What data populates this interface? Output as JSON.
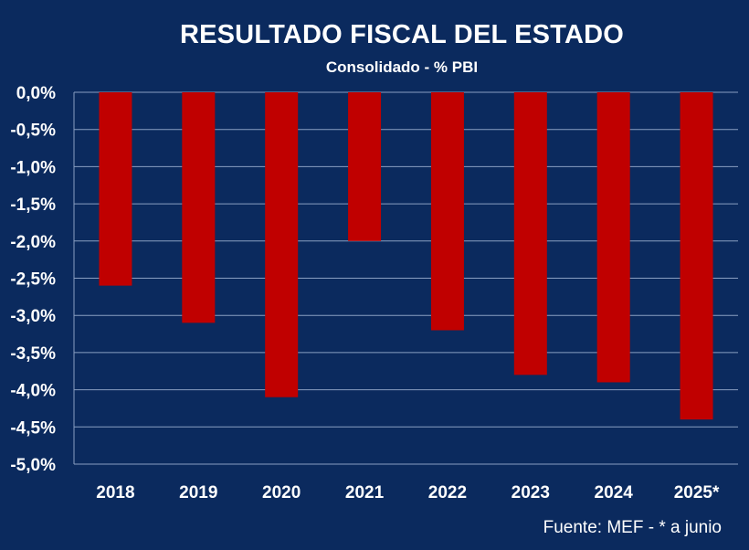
{
  "chart_data": {
    "type": "bar",
    "title": "RESULTADO FISCAL  DEL ESTADO",
    "subtitle": "Consolidado - % PBI",
    "categories": [
      "2018",
      "2019",
      "2020",
      "2021",
      "2022",
      "2023",
      "2024",
      "2025*"
    ],
    "values": [
      -2.6,
      -3.1,
      -4.1,
      -2.0,
      -3.2,
      -3.8,
      -3.9,
      -4.4
    ],
    "ylim": [
      -5.0,
      0.0
    ],
    "yticks": [
      0.0,
      -0.5,
      -1.0,
      -1.5,
      -2.0,
      -2.5,
      -3.0,
      -3.5,
      -4.0,
      -4.5,
      -5.0
    ],
    "ytick_labels": [
      "0,0%",
      "-0,5%",
      "-1,0%",
      "-1,5%",
      "-2,0%",
      "-2,5%",
      "-3,0%",
      "-3,5%",
      "-4,0%",
      "-4,5%",
      "-5,0%"
    ],
    "grid": true,
    "colors": {
      "background": "#0b2a5e",
      "bar": "#c00000",
      "grid": "#8a9fc2",
      "text": "#ffffff"
    },
    "source": "Fuente: MEF - * a junio"
  }
}
